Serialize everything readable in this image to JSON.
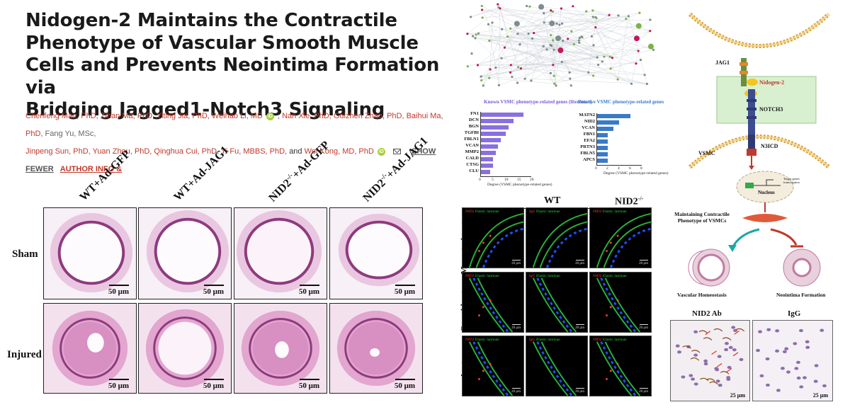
{
  "paper": {
    "title_lines": [
      "Nidogen-2 Maintains the Contractile",
      "Phenotype of Vascular Smooth Muscle",
      "Cells and Prevents Neointima Formation via",
      "Bridging Jagged1-Notch3 Signaling"
    ],
    "authors_line1": "Chenfeng Mao, PhD, Zihan Ma, PhD, Yiting Jia, PhD, Weihao Li, MD",
    "authors_line1b": ", Nan Xie, PhD, Guizhen Zhao, PhD, Baihui Ma, PhD,",
    "authors_line1c": "Fang Yu, MSc,",
    "authors_line2": "Jinpeng Sun, PhD, Yuan Zhou, PhD, Qinghua Cui, PhD, Yi Fu, MBBS, PhD,",
    "authors_and": "and",
    "authors_line2b": "Wei Kong, MD, PhD",
    "orcid_glyph": "iD",
    "show_fewer": "SHOW FEWER",
    "author_info": "AUTHOR INFO &"
  },
  "he_figure": {
    "columns": [
      "WT+Ad-GFP",
      "WT+Ad-JAG1",
      "NID2-/-+Ad-GFP",
      "NID2-/-+Ad-JAG1"
    ],
    "col_prefix": [
      "",
      "",
      "NID2",
      "NID2"
    ],
    "col_sup": [
      "",
      "",
      "-/-",
      "-/-"
    ],
    "col_suffix": [
      "WT+Ad-GFP",
      "WT+Ad-JAG1",
      "+Ad-GFP",
      "+Ad-JAG1"
    ],
    "rows": [
      "Sham",
      "Injured"
    ],
    "scale": "50 μm"
  },
  "bar_charts": {
    "left": {
      "title": "Known VSMC phenotype-related genes (literature)",
      "genes": [
        "FN1",
        "DCN",
        "BGN",
        "TGFBI",
        "FBLN1",
        "VCAN",
        "MMP2",
        "CALD",
        "CTSG",
        "CLU"
      ],
      "values": [
        17,
        13,
        11,
        10,
        8,
        7,
        6,
        5,
        5,
        4
      ],
      "ticks": [
        "0",
        "5",
        "10",
        "15",
        "20"
      ],
      "xlabel": "Degree (VSMC phenotype-related genes)",
      "color": "#8a6fe0"
    },
    "right": {
      "title": "Putative VSMC phenotype-related genes",
      "genes": [
        "MATN2",
        "NID2",
        "VCAN",
        "FBN1",
        "EFA2",
        "PRTN3",
        "FBLN5",
        "APCS"
      ],
      "values": [
        6,
        4,
        3,
        2,
        2,
        2,
        2,
        2
      ],
      "ticks": [
        "0",
        "2",
        "4",
        "6",
        "8"
      ],
      "xlabel": "Degree (VSMC phenotype-related genes)",
      "color": "#3a7bc8"
    }
  },
  "if_figure": {
    "groups": [
      "WT",
      "NID2"
    ],
    "group_sup": [
      "",
      "-/-"
    ],
    "rows": [
      "Mesenteric artery",
      "Carotid artery",
      "Aorta"
    ],
    "panel_labels": [
      {
        "red": "NID2",
        "green": "Elastic laminae"
      },
      {
        "red": "IgG",
        "green": "Elastic laminae"
      },
      {
        "red": "NID2",
        "green": "Elastic laminae"
      }
    ],
    "scale": "20 μm"
  },
  "schematic": {
    "jag1": "JAG1",
    "nidogen": "Nidogen-2",
    "notch3": "NOTCH3",
    "vsmc": "VSMC",
    "n3icd": "N3ICD",
    "nucleus": "Nucleus",
    "target": "Target genes transcription",
    "maintaining": [
      "Maintaining Contractile",
      "Phenotype of VSMCs"
    ],
    "homeostasis": "Vascular Homeostasis",
    "neointima": "Neointima Formation"
  },
  "ihc": {
    "left": "NID2 Ab",
    "right": "IgG",
    "scale": "25 μm"
  }
}
